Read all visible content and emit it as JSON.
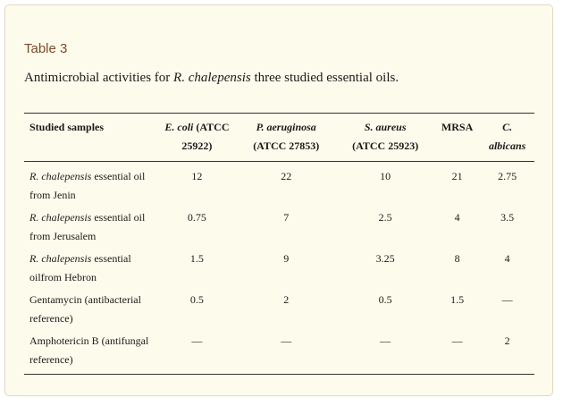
{
  "table_label": "Table 3",
  "caption": {
    "prefix": "Antimicrobial activities for ",
    "species": "R. chalepensis",
    "suffix": " three studied essential oils."
  },
  "columns": [
    {
      "italic": "",
      "plain": "Studied samples",
      "line2": ""
    },
    {
      "italic": "E. coli",
      "plain": " (ATCC",
      "line2": "25922)"
    },
    {
      "italic": "P. aeruginosa",
      "plain": "",
      "line2": "(ATCC 27853)"
    },
    {
      "italic": "S. aureus",
      "plain": "",
      "line2": "(ATCC 25923)"
    },
    {
      "italic": "",
      "plain": "MRSA",
      "line2": ""
    },
    {
      "italic": "C.",
      "plain": "",
      "line2": "albicans"
    }
  ],
  "rows": [
    {
      "sample_italic": "R. chalepensis",
      "sample_text": " essential oil from Jenin",
      "values": [
        "12",
        "22",
        "10",
        "21",
        "2.75"
      ]
    },
    {
      "sample_italic": "R. chalepensis",
      "sample_text": " essential oil from Jerusalem",
      "values": [
        "0.75",
        "7",
        "2.5",
        "4",
        "3.5"
      ]
    },
    {
      "sample_italic": "R. chalepensis",
      "sample_text": " essential oilfrom Hebron",
      "values": [
        "1.5",
        "9",
        "3.25",
        "8",
        "4"
      ]
    },
    {
      "sample_italic": "",
      "sample_text": "Gentamycin (antibacterial reference)",
      "values": [
        "0.5",
        "2",
        "0.5",
        "1.5",
        "—"
      ]
    },
    {
      "sample_italic": "",
      "sample_text": "Amphotericin B (antifungal reference)",
      "values": [
        "—",
        "—",
        "—",
        "—",
        "2"
      ]
    }
  ]
}
